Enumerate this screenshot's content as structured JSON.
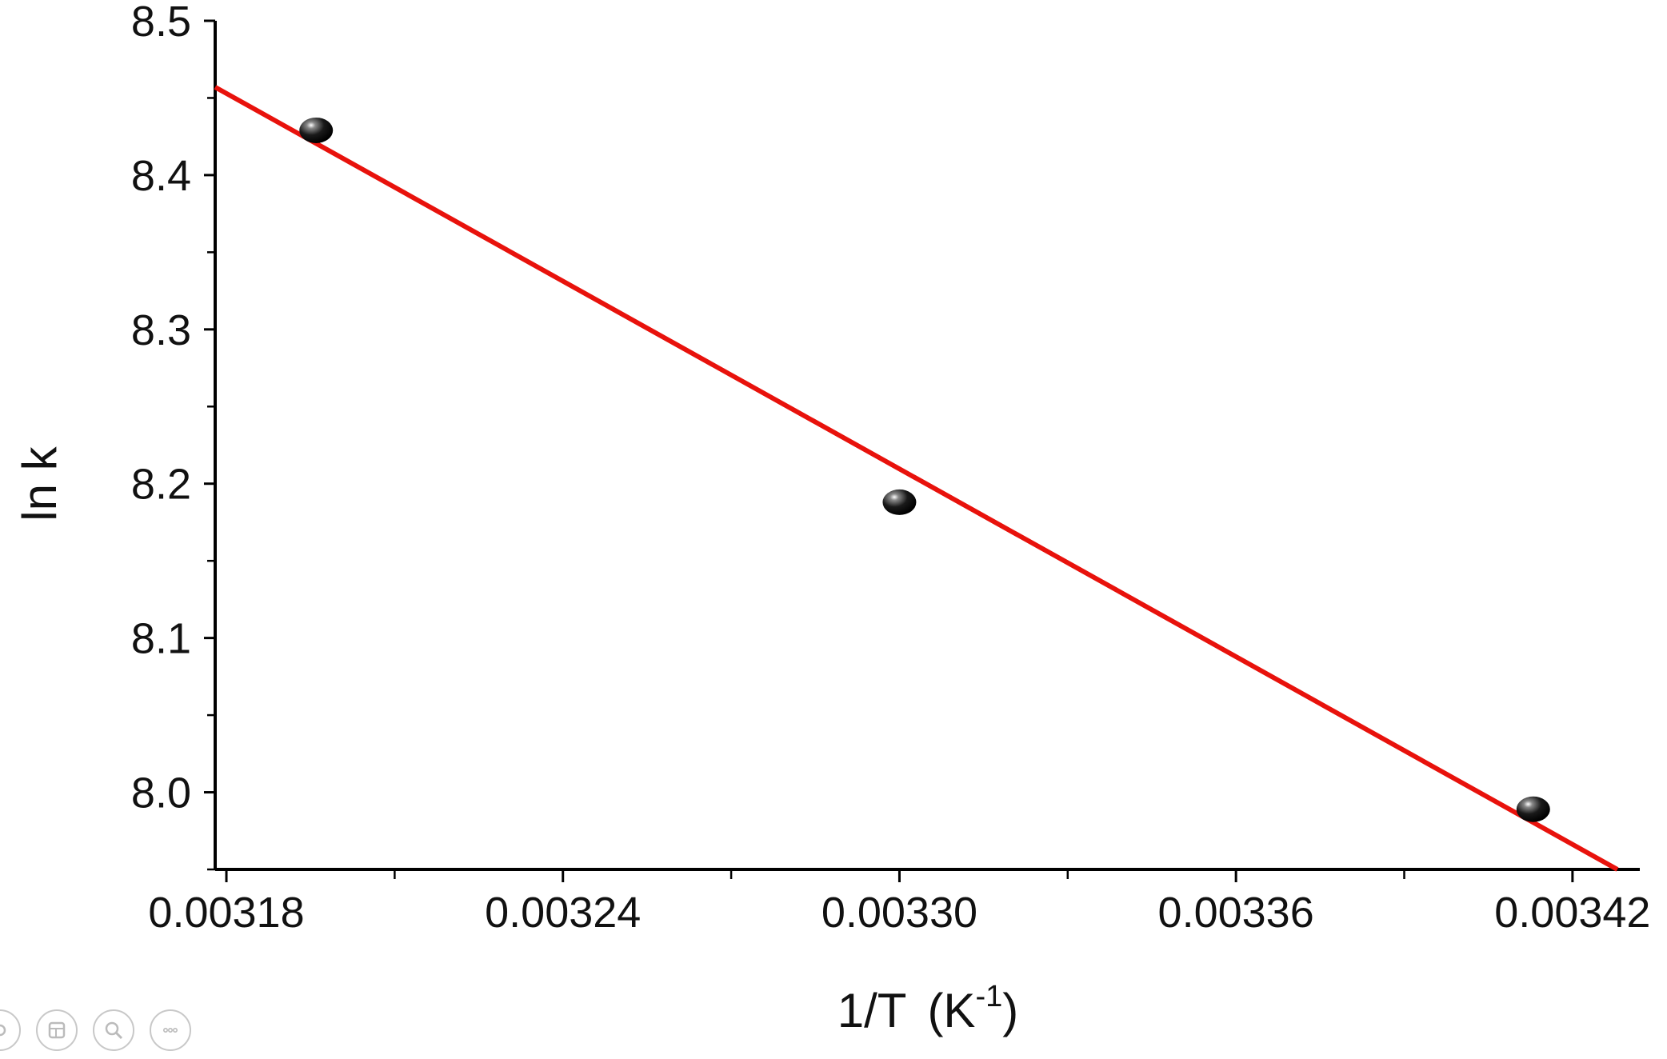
{
  "chart_data": {
    "type": "scatter",
    "title": "",
    "xlabel": "1/T",
    "xlabel_unit": "(K",
    "xlabel_unit_exp": "-1",
    "xlabel_unit_close": ")",
    "ylabel": "ln k",
    "xlim": [
      0.003178,
      0.003432
    ],
    "ylim": [
      7.95,
      8.5
    ],
    "xticks": [
      "0.00318",
      "0.00324",
      "0.00330",
      "0.00336",
      "0.00342"
    ],
    "xtick_values": [
      0.00318,
      0.00324,
      0.0033,
      0.00336,
      0.00342
    ],
    "yticks": [
      "8.0",
      "8.1",
      "8.2",
      "8.3",
      "8.4",
      "8.5"
    ],
    "ytick_values": [
      8.0,
      8.1,
      8.2,
      8.3,
      8.4,
      8.5
    ],
    "grid": false,
    "legend": "none",
    "series": [
      {
        "type": "scatter",
        "color": "#111111",
        "x": [
          0.003196,
          0.0033,
          0.003413
        ],
        "y": [
          8.429,
          8.188,
          7.989
        ]
      },
      {
        "type": "line",
        "color": "#e8120c",
        "x": [
          0.003178,
          0.003428
        ],
        "y": [
          8.457,
          7.95
        ]
      }
    ]
  },
  "toolbar": {
    "icons": [
      "settings-icon",
      "gallery-icon",
      "zoom-icon",
      "more-icon"
    ]
  }
}
